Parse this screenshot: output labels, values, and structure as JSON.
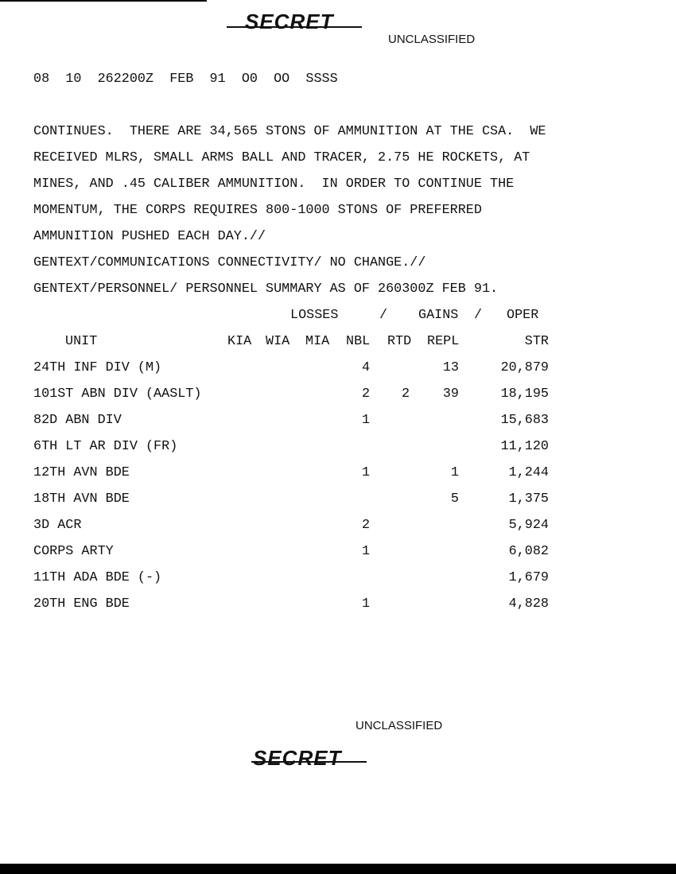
{
  "header": {
    "stamp_top": "SECRET",
    "classification_top": "UNCLASSIFIED",
    "message_line": "08  10  262200Z  FEB  91  O0  OO  SSSS"
  },
  "body_lines": [
    "CONTINUES.  THERE ARE 34,565 STONS OF AMMUNITION AT THE CSA.  WE",
    "RECEIVED MLRS, SMALL ARMS BALL AND TRACER, 2.75 HE ROCKETS, AT",
    "MINES, AND .45 CALIBER AMMUNITION.  IN ORDER TO CONTINUE THE",
    "MOMENTUM, THE CORPS REQUIRES 800-1000 STONS OF PREFERRED",
    "AMMUNITION PUSHED EACH DAY.//",
    "GENTEXT/COMMUNICATIONS CONNECTIVITY/ NO CHANGE.//",
    "GENTEXT/PERSONNEL/ PERSONNEL SUMMARY AS OF 260300Z FEB 91."
  ],
  "table": {
    "group_headers": {
      "losses": "LOSSES",
      "sep1": "/",
      "gains": "GAINS",
      "sep2": "/",
      "oper": "OPER"
    },
    "columns": [
      "UNIT",
      "KIA",
      "WIA",
      "MIA",
      "NBL",
      "RTD",
      "REPL",
      "STR"
    ],
    "rows": [
      {
        "unit": "24TH INF DIV (M)",
        "nbl": "4",
        "rtd": "",
        "repl": "13",
        "str": "20,879"
      },
      {
        "unit": "101ST ABN DIV (AASLT)",
        "nbl": "2",
        "rtd": "2",
        "repl": "39",
        "str": "18,195"
      },
      {
        "unit": "82D ABN DIV",
        "nbl": "1",
        "rtd": "",
        "repl": "",
        "str": "15,683"
      },
      {
        "unit": "6TH LT AR DIV (FR)",
        "nbl": "",
        "rtd": "",
        "repl": "",
        "str": "11,120"
      },
      {
        "unit": "12TH AVN BDE",
        "nbl": "1",
        "rtd": "",
        "repl": "1",
        "str": "1,244"
      },
      {
        "unit": "18TH AVN BDE",
        "nbl": "",
        "rtd": "",
        "repl": "5",
        "str": "1,375"
      },
      {
        "unit": "3D ACR",
        "nbl": "2",
        "rtd": "",
        "repl": "",
        "str": "5,924"
      },
      {
        "unit": "CORPS ARTY",
        "nbl": "1",
        "rtd": "",
        "repl": "",
        "str": "6,082"
      },
      {
        "unit": "11TH ADA BDE (-)",
        "nbl": "",
        "rtd": "",
        "repl": "",
        "str": "1,679"
      },
      {
        "unit": "20TH ENG BDE",
        "nbl": "1",
        "rtd": "",
        "repl": "",
        "str": "4,828"
      }
    ]
  },
  "footer": {
    "classification_bottom": "UNCLASSIFIED",
    "stamp_bottom": "SECRET"
  }
}
